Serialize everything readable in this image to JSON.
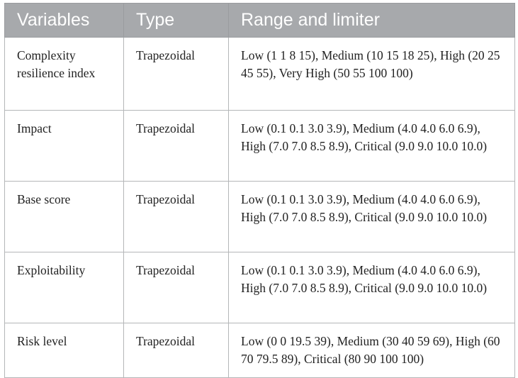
{
  "table": {
    "headers": [
      "Variables",
      "Type",
      "Range and limiter"
    ],
    "rows": [
      {
        "variable": "Complexity resilience index",
        "type": "Trapezoidal",
        "range": "Low (1 1 8 15), Medium (10 15 18 25), High (20 25 45 55), Very High (50 55 100 100)"
      },
      {
        "variable": "Impact",
        "type": "Trapezoidal",
        "range": "Low (0.1 0.1 3.0 3.9), Medium (4.0 4.0 6.0 6.9), High (7.0 7.0 8.5 8.9), Critical (9.0 9.0 10.0 10.0)"
      },
      {
        "variable": "Base score",
        "type": "Trapezoidal",
        "range": "Low (0.1 0.1 3.0 3.9), Medium (4.0 4.0 6.0 6.9), High (7.0 7.0 8.5 8.9), Critical (9.0 9.0 10.0 10.0)"
      },
      {
        "variable": "Exploitability",
        "type": "Trapezoidal",
        "range": "Low (0.1 0.1 3.0 3.9), Medium (4.0 4.0 6.0 6.9), High (7.0 7.0 8.5 8.9), Critical (9.0 9.0 10.0 10.0)"
      },
      {
        "variable": "Risk level",
        "type": "Trapezoidal",
        "range": "Low (0 0 19.5 39), Medium (30 40 59 69), High (60 70 79.5 89), Critical (80 90 100 100)"
      }
    ]
  }
}
